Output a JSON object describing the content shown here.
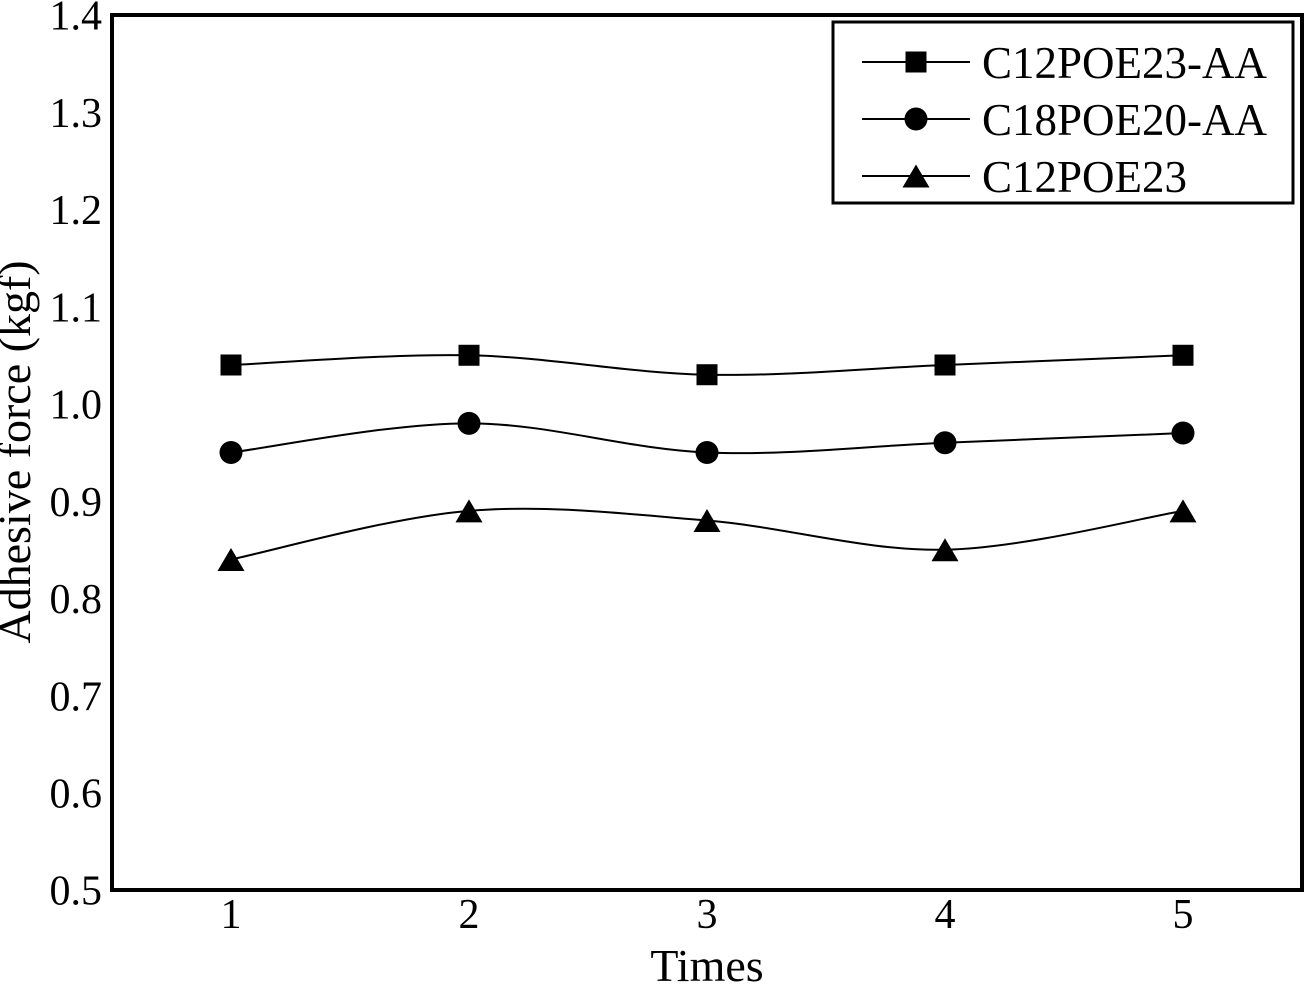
{
  "figure": {
    "background": "#ffffff",
    "line_color": "#000000",
    "frame_color": "#000000"
  },
  "chart_data": {
    "type": "line",
    "title": "",
    "xlabel": "Times",
    "ylabel": "Adhesive force (kgf)",
    "x": [
      1,
      2,
      3,
      4,
      5
    ],
    "xticks": [
      "1",
      "2",
      "3",
      "4",
      "5"
    ],
    "yticks": [
      "0.5",
      "0.6",
      "0.7",
      "0.8",
      "0.9",
      "1.0",
      "1.1",
      "1.2",
      "1.3",
      "1.4"
    ],
    "ytick_values": [
      0.5,
      0.6,
      0.7,
      0.8,
      0.9,
      1.0,
      1.1,
      1.2,
      1.3,
      1.4
    ],
    "xlim": [
      0.5,
      5.5
    ],
    "ylim": [
      0.5,
      1.4
    ],
    "grid": false,
    "legend_position": "top-right",
    "series": [
      {
        "name": "C12POE23-AA",
        "marker": "square",
        "values": [
          1.04,
          1.05,
          1.03,
          1.04,
          1.05
        ]
      },
      {
        "name": "C18POE20-AA",
        "marker": "circle",
        "values": [
          0.95,
          0.98,
          0.95,
          0.96,
          0.97
        ]
      },
      {
        "name": "C12POE23",
        "marker": "triangle",
        "values": [
          0.84,
          0.89,
          0.88,
          0.85,
          0.89
        ]
      }
    ]
  }
}
